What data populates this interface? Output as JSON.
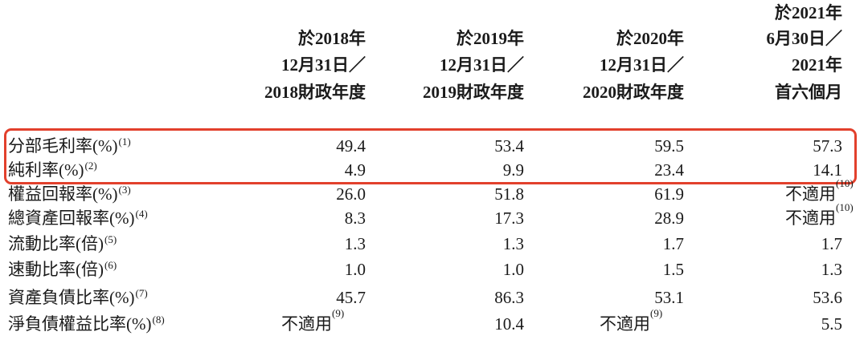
{
  "table": {
    "columns": [
      [
        "於2018年",
        "12月31日／",
        "2018財政年度"
      ],
      [
        "於2019年",
        "12月31日／",
        "2019財政年度"
      ],
      [
        "於2020年",
        "12月31日／",
        "2020財政年度"
      ],
      [
        "於2021年",
        "6月30日／",
        "2021年",
        "首六個月"
      ]
    ],
    "rows": [
      {
        "label": "分部毛利率(%)",
        "note": "(1)",
        "cells": [
          {
            "text": "49.4"
          },
          {
            "text": "53.4"
          },
          {
            "text": "59.5"
          },
          {
            "text": "57.3"
          }
        ]
      },
      {
        "label": "純利率(%)",
        "note": "(2)",
        "cells": [
          {
            "text": "4.9"
          },
          {
            "text": "9.9"
          },
          {
            "text": "23.4"
          },
          {
            "text": "14.1"
          }
        ]
      },
      {
        "label": "權益回報率(%)",
        "note": "(3)",
        "cells": [
          {
            "text": "26.0"
          },
          {
            "text": "51.8"
          },
          {
            "text": "61.9"
          },
          {
            "text": "不適用",
            "note": "(10)"
          }
        ]
      },
      {
        "label": "總資產回報率(%)",
        "note": "(4)",
        "cells": [
          {
            "text": "8.3"
          },
          {
            "text": "17.3"
          },
          {
            "text": "28.9"
          },
          {
            "text": "不適用",
            "note": "(10)"
          }
        ]
      },
      {
        "label": "流動比率(倍)",
        "note": "(5)",
        "cells": [
          {
            "text": "1.3"
          },
          {
            "text": "1.3"
          },
          {
            "text": "1.7"
          },
          {
            "text": "1.7"
          }
        ]
      },
      {
        "label": "速動比率(倍)",
        "note": "(6)",
        "cells": [
          {
            "text": "1.0"
          },
          {
            "text": "1.0"
          },
          {
            "text": "1.5"
          },
          {
            "text": "1.3"
          }
        ]
      },
      {
        "label": "資產負債比率(%)",
        "note": "(7)",
        "cells": [
          {
            "text": "45.7"
          },
          {
            "text": "86.3"
          },
          {
            "text": "53.1"
          },
          {
            "text": "53.6"
          }
        ]
      },
      {
        "label": "淨負債權益比率(%)",
        "note": "(8)",
        "cells": [
          {
            "text": "不適用",
            "note": "(9)"
          },
          {
            "text": "10.4"
          },
          {
            "text": "不適用",
            "note": "(9)"
          },
          {
            "text": "5.5"
          }
        ]
      }
    ]
  }
}
